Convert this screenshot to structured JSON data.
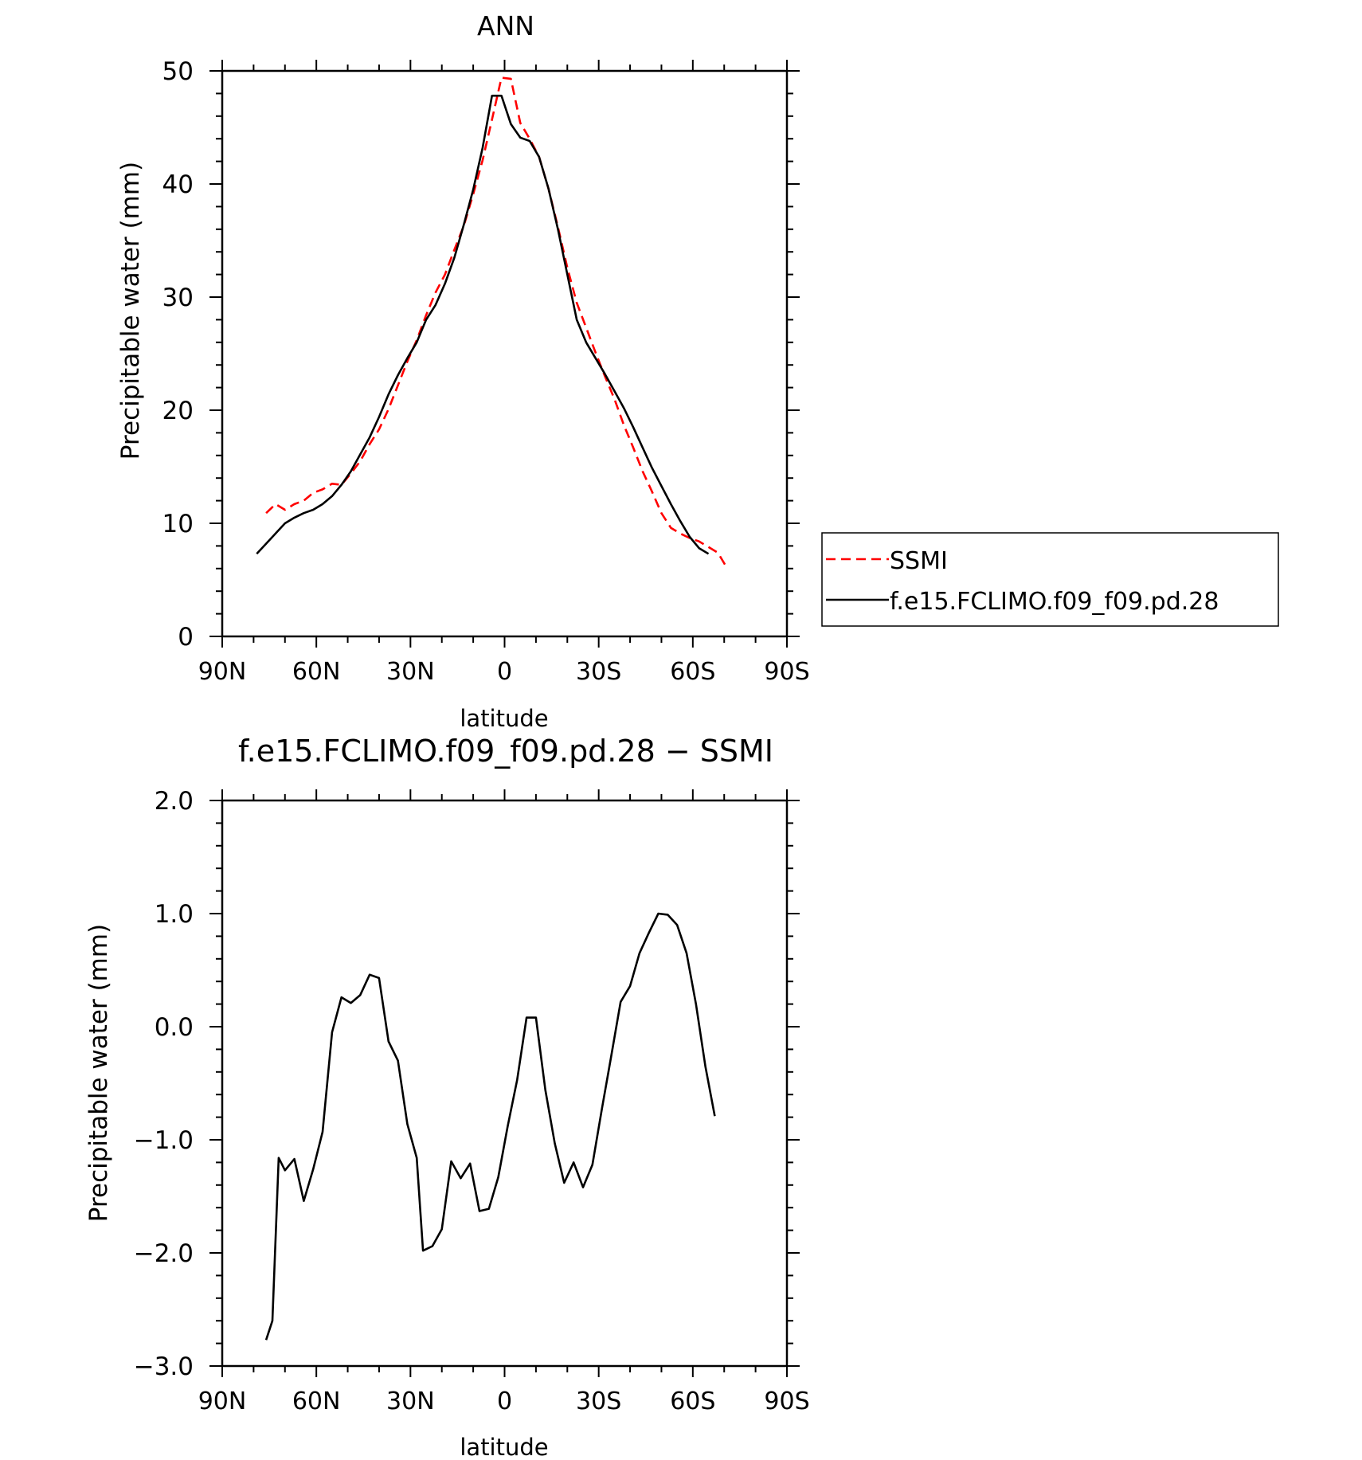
{
  "chart_data": [
    {
      "type": "line",
      "title": "ANN",
      "xlabel": "latitude",
      "ylabel": "Precipitable water (mm)",
      "x_ticks": [
        "90N",
        "60N",
        "30N",
        "0",
        "30S",
        "60S",
        "90S"
      ],
      "y_ticks": [
        "0",
        "10",
        "20",
        "30",
        "40",
        "50"
      ],
      "xlim": [
        -90,
        90
      ],
      "ylim": [
        0,
        50
      ],
      "grid": false,
      "legend": "right",
      "series": [
        {
          "name": "SSMI",
          "color": "#ff0000",
          "dash": "dashed",
          "x": [
            -76,
            -73,
            -70,
            -67,
            -64,
            -61,
            -58,
            -55,
            -52,
            -49,
            -46,
            -43,
            -40,
            -37,
            -34,
            -31,
            -28,
            -25,
            -22,
            -19,
            -16,
            -13,
            -10,
            -7,
            -4,
            -1,
            2,
            5,
            8,
            11,
            14,
            17,
            20,
            23,
            26,
            29,
            32,
            35,
            38,
            41,
            44,
            47,
            50,
            53,
            56,
            59,
            62,
            65,
            68,
            71,
            74
          ],
          "y": [
            10.9,
            11.7,
            11.2,
            11.7,
            12.0,
            12.7,
            13.0,
            13.5,
            13.4,
            14.4,
            15.5,
            17.0,
            18.3,
            20.1,
            22.2,
            24.3,
            26.2,
            28.4,
            30.4,
            32.0,
            34.2,
            36.3,
            39.1,
            42.1,
            45.7,
            49.4,
            49.3,
            45.4,
            44.0,
            42.4,
            39.6,
            36.2,
            32.6,
            29.5,
            27.3,
            25.1,
            23.0,
            21.0,
            18.7,
            16.7,
            14.6,
            12.8,
            10.9,
            9.6,
            9.1,
            8.7,
            8.4,
            7.9,
            7.4,
            6.0,
            null
          ]
        },
        {
          "name": "f.e15.FCLIMO.f09_f09.pd.28",
          "color": "#000000",
          "dash": "solid",
          "x": [
            -79,
            -76,
            -73,
            -70,
            -67,
            -64,
            -61,
            -58,
            -55,
            -52,
            -49,
            -46,
            -43,
            -40,
            -37,
            -34,
            -31,
            -28,
            -25,
            -22,
            -19,
            -16,
            -13,
            -10,
            -7,
            -4,
            -1,
            2,
            5,
            8,
            11,
            14,
            17,
            20,
            23,
            26,
            29,
            32,
            35,
            38,
            41,
            44,
            47,
            50,
            53,
            56,
            59,
            62,
            65,
            68
          ],
          "y": [
            7.3,
            8.2,
            9.1,
            10.0,
            10.5,
            10.9,
            11.2,
            11.7,
            12.4,
            13.4,
            14.6,
            16.1,
            17.6,
            19.4,
            21.4,
            23.1,
            24.6,
            26.0,
            28.0,
            29.3,
            31.2,
            33.5,
            36.4,
            39.5,
            43.2,
            47.8,
            47.8,
            45.3,
            44.1,
            43.8,
            42.4,
            39.6,
            36.0,
            32.0,
            28.0,
            26.0,
            24.6,
            23.2,
            21.7,
            20.2,
            18.5,
            16.7,
            14.9,
            13.3,
            11.7,
            10.2,
            8.8,
            7.8,
            7.3,
            null
          ]
        }
      ]
    },
    {
      "type": "line",
      "title": "f.e15.FCLIMO.f09_f09.pd.28 − SSMI",
      "xlabel": "latitude",
      "ylabel": "Precipitable water (mm)",
      "x_ticks": [
        "90N",
        "60N",
        "30N",
        "0",
        "30S",
        "60S",
        "90S"
      ],
      "y_ticks": [
        "2.0",
        "1.0",
        "0.0",
        "−1.0",
        "−2.0",
        "−3.0"
      ],
      "xlim": [
        -90,
        90
      ],
      "ylim": [
        -3,
        2
      ],
      "grid": false,
      "series": [
        {
          "color": "#000000",
          "dash": "solid",
          "x": [
            -76,
            -74,
            -72,
            -70,
            -67,
            -64,
            -61,
            -58,
            -55,
            -52,
            -49,
            -46,
            -43,
            -40,
            -37,
            -34,
            -31,
            -28,
            -26,
            -23,
            -20,
            -17,
            -14,
            -11,
            -8,
            -5,
            -2,
            1,
            4,
            7,
            10,
            13,
            16,
            19,
            22,
            25,
            28,
            31,
            34,
            37,
            40,
            43,
            46,
            49,
            52,
            55,
            58,
            61,
            64,
            67
          ],
          "y": [
            -2.77,
            -2.6,
            -1.16,
            -1.27,
            -1.17,
            -1.54,
            -1.26,
            -0.93,
            -0.05,
            0.26,
            0.21,
            0.28,
            0.46,
            0.43,
            -0.13,
            -0.3,
            -0.86,
            -1.16,
            -1.98,
            -1.94,
            -1.79,
            -1.19,
            -1.34,
            -1.21,
            -1.63,
            -1.61,
            -1.33,
            -0.88,
            -0.47,
            0.08,
            0.08,
            -0.56,
            -1.03,
            -1.38,
            -1.2,
            -1.42,
            -1.22,
            -0.73,
            -0.26,
            0.22,
            0.36,
            0.65,
            0.83,
            1.0,
            0.99,
            0.9,
            0.65,
            0.2,
            -0.35,
            -0.79
          ]
        }
      ]
    }
  ],
  "legend_items": [
    {
      "label": "SSMI",
      "color": "#ff0000",
      "dash": "dashed"
    },
    {
      "label": "f.e15.FCLIMO.f09_f09.pd.28",
      "color": "#000000",
      "dash": "solid"
    }
  ]
}
